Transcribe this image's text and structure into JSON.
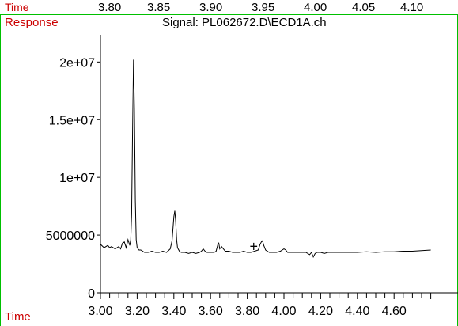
{
  "top_strip": {
    "time_label": "Time",
    "ticks": [
      "3.80",
      "3.85",
      "3.90",
      "3.95",
      "4.00",
      "4.05",
      "4.10"
    ]
  },
  "colors": {
    "frame": "#00c000",
    "axis_label": "#cc0000",
    "trace": "#000000",
    "text": "#000000"
  },
  "chart_data": {
    "type": "line",
    "title": "Signal: PL062672.D\\ECD1A.ch",
    "xlabel": "Time",
    "ylabel": "Response_",
    "xlim": [
      3.0,
      4.8
    ],
    "ylim": [
      0,
      24000000
    ],
    "x_ticks": [
      3.0,
      3.2,
      3.4,
      3.6,
      3.8,
      4.0,
      4.2,
      4.4,
      4.6
    ],
    "x_tick_labels": [
      "3.00",
      "3.20",
      "3.40",
      "3.60",
      "3.80",
      "4.00",
      "4.20",
      "4.40",
      "4.60"
    ],
    "x_minor_step": 0.05,
    "y_ticks": [
      0,
      5000000,
      10000000,
      15000000,
      20000000
    ],
    "y_tick_labels": [
      "0",
      "5000000",
      "1e+07",
      "1.5e+07",
      "2e+07"
    ],
    "marker": {
      "symbol": "+",
      "x": 3.835,
      "y": 4000000
    },
    "series": [
      {
        "x": [
          3.0,
          3.02,
          3.04,
          3.05,
          3.06,
          3.08,
          3.1,
          3.11,
          3.12,
          3.13,
          3.14,
          3.15,
          3.16,
          3.165,
          3.17,
          3.175,
          3.18,
          3.185,
          3.19,
          3.195,
          3.2,
          3.21,
          3.22,
          3.24,
          3.26,
          3.28,
          3.3,
          3.32,
          3.34,
          3.36,
          3.38,
          3.39,
          3.4,
          3.405,
          3.41,
          3.415,
          3.42,
          3.43,
          3.44,
          3.46,
          3.48,
          3.5,
          3.52,
          3.54,
          3.55,
          3.56,
          3.57,
          3.58,
          3.6,
          3.62,
          3.63,
          3.64,
          3.645,
          3.65,
          3.66,
          3.67,
          3.68,
          3.7,
          3.72,
          3.74,
          3.76,
          3.78,
          3.8,
          3.82,
          3.84,
          3.86,
          3.87,
          3.88,
          3.885,
          3.89,
          3.9,
          3.92,
          3.94,
          3.96,
          3.98,
          4.0,
          4.01,
          4.02,
          4.04,
          4.06,
          4.08,
          4.1,
          4.12,
          4.14,
          4.15,
          4.16,
          4.17,
          4.18,
          4.2,
          4.22,
          4.24,
          4.26,
          4.28,
          4.3,
          4.35,
          4.4,
          4.45,
          4.5,
          4.55,
          4.6,
          4.65,
          4.7,
          4.75,
          4.8
        ],
        "y": [
          4200000,
          3900000,
          4100000,
          3900000,
          4000000,
          3800000,
          4000000,
          3800000,
          4300000,
          4400000,
          3900000,
          4600000,
          4100000,
          4600000,
          6800000,
          14000000,
          20200000,
          16000000,
          8000000,
          4600000,
          3900000,
          3700000,
          3700000,
          3500000,
          3500000,
          3600000,
          3500000,
          3500000,
          3600000,
          3500000,
          3800000,
          4500000,
          6600000,
          7100000,
          6200000,
          4600000,
          3900000,
          3600000,
          3500000,
          3500000,
          3400000,
          3500000,
          3400000,
          3500000,
          3600000,
          3800000,
          3600000,
          3500000,
          3500000,
          3500000,
          3600000,
          4200000,
          4300000,
          3800000,
          4000000,
          3800000,
          3600000,
          3600000,
          3500000,
          3500000,
          3500000,
          3600000,
          3500000,
          3500000,
          3600000,
          3700000,
          4200000,
          4500000,
          4400000,
          4100000,
          3700000,
          3500000,
          3500000,
          3500000,
          3600000,
          3800000,
          3700000,
          3500000,
          3500000,
          3500000,
          3500000,
          3500000,
          3500000,
          3300000,
          3500000,
          3100000,
          3400000,
          3500000,
          3500000,
          3400000,
          3500000,
          3500000,
          3500000,
          3500000,
          3500000,
          3500000,
          3550000,
          3500000,
          3550000,
          3550000,
          3600000,
          3600000,
          3650000,
          3700000
        ]
      }
    ]
  }
}
